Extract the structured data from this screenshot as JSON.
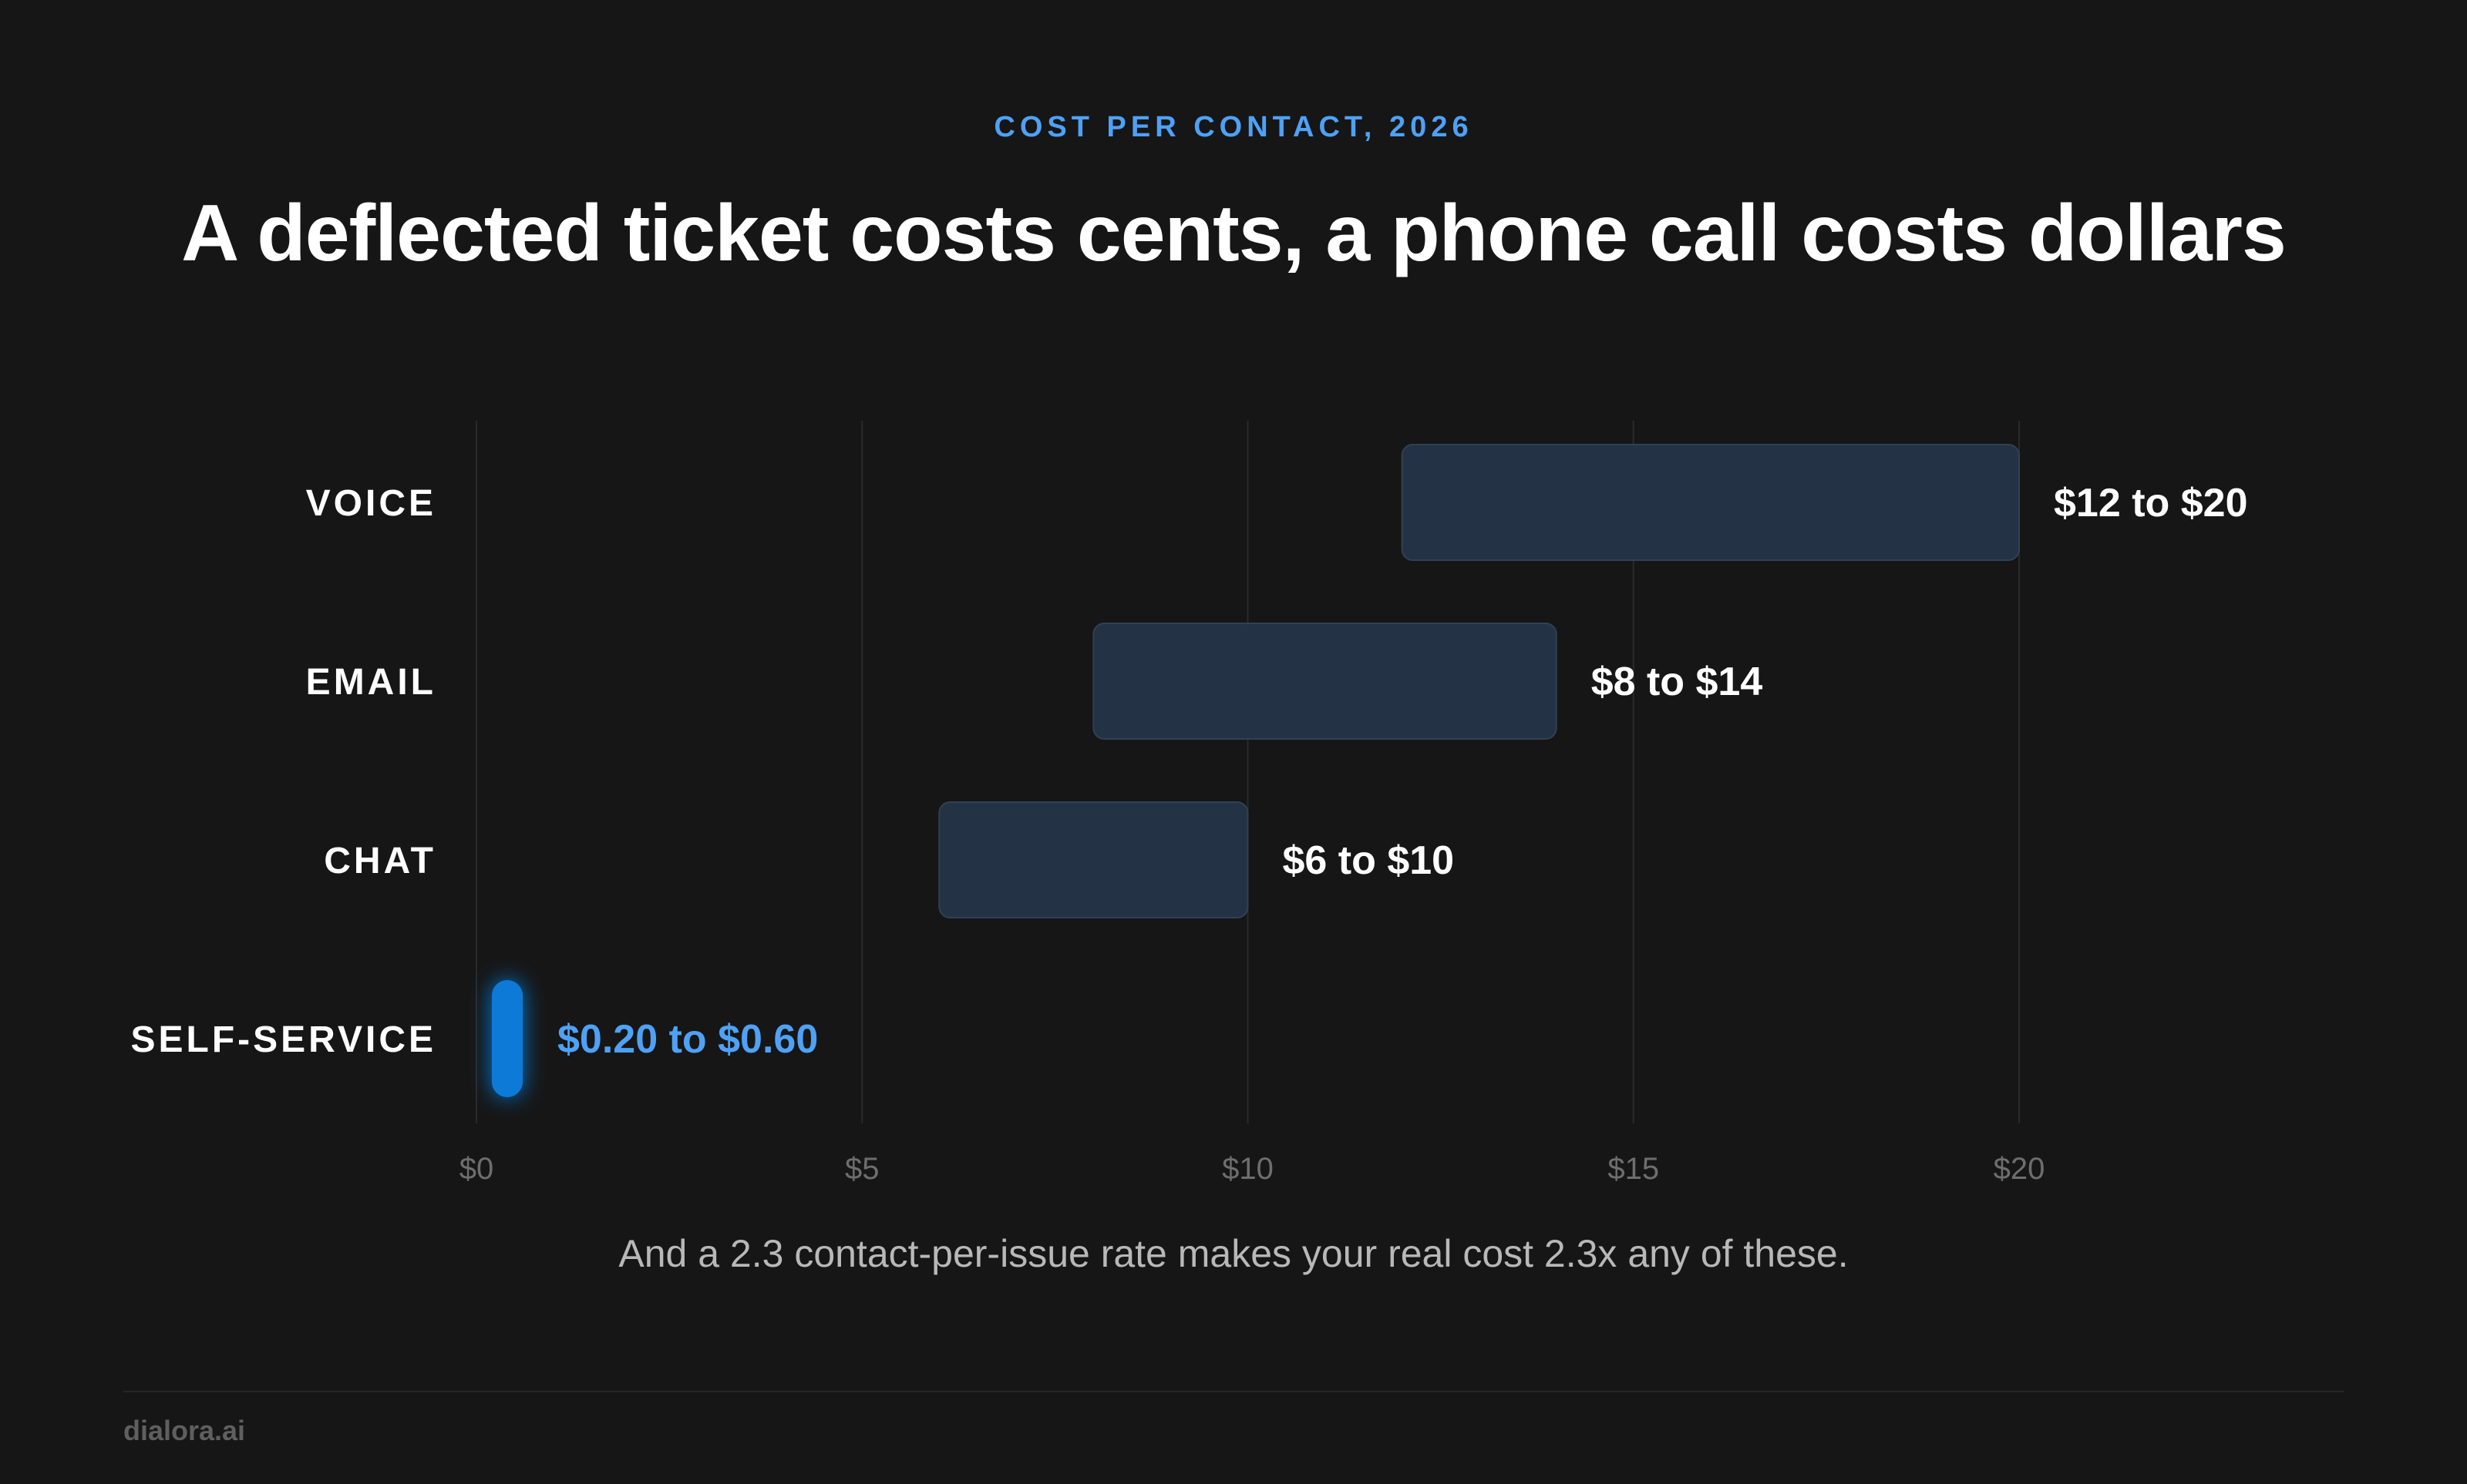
{
  "header": {
    "eyebrow": "COST PER CONTACT, 2026",
    "title": "A deflected ticket costs cents, a phone call costs dollars"
  },
  "chart_data": {
    "type": "bar",
    "orientation": "horizontal",
    "style": "range",
    "categories": [
      "VOICE",
      "EMAIL",
      "CHAT",
      "SELF-SERVICE"
    ],
    "ranges": [
      {
        "category": "VOICE",
        "low": 12,
        "high": 20,
        "label": "$12 to $20",
        "highlight": false
      },
      {
        "category": "EMAIL",
        "low": 8,
        "high": 14,
        "label": "$8 to $14",
        "highlight": false
      },
      {
        "category": "CHAT",
        "low": 6,
        "high": 10,
        "label": "$6 to $10",
        "highlight": false
      },
      {
        "category": "SELF-SERVICE",
        "low": 0.2,
        "high": 0.6,
        "label": "$0.20 to $0.60",
        "highlight": true
      }
    ],
    "xlim": [
      0,
      20
    ],
    "xticks": [
      0,
      5,
      10,
      15,
      20
    ],
    "xtick_labels": [
      "$0",
      "$5",
      "$10",
      "$15",
      "$20"
    ],
    "grid": "vertical",
    "colors": {
      "bar_fill": "#243447",
      "bar_stroke": "#2f4156",
      "highlight": "#0a7ad8",
      "highlight_label": "#4ea1f5",
      "label": "#ffffff",
      "tick": "#6e6e6e",
      "grid": "#2a2a2a"
    }
  },
  "subtitle": "And a 2.3 contact-per-issue rate makes your real cost 2.3x any of these.",
  "footer": {
    "brand": "dialora.ai"
  }
}
